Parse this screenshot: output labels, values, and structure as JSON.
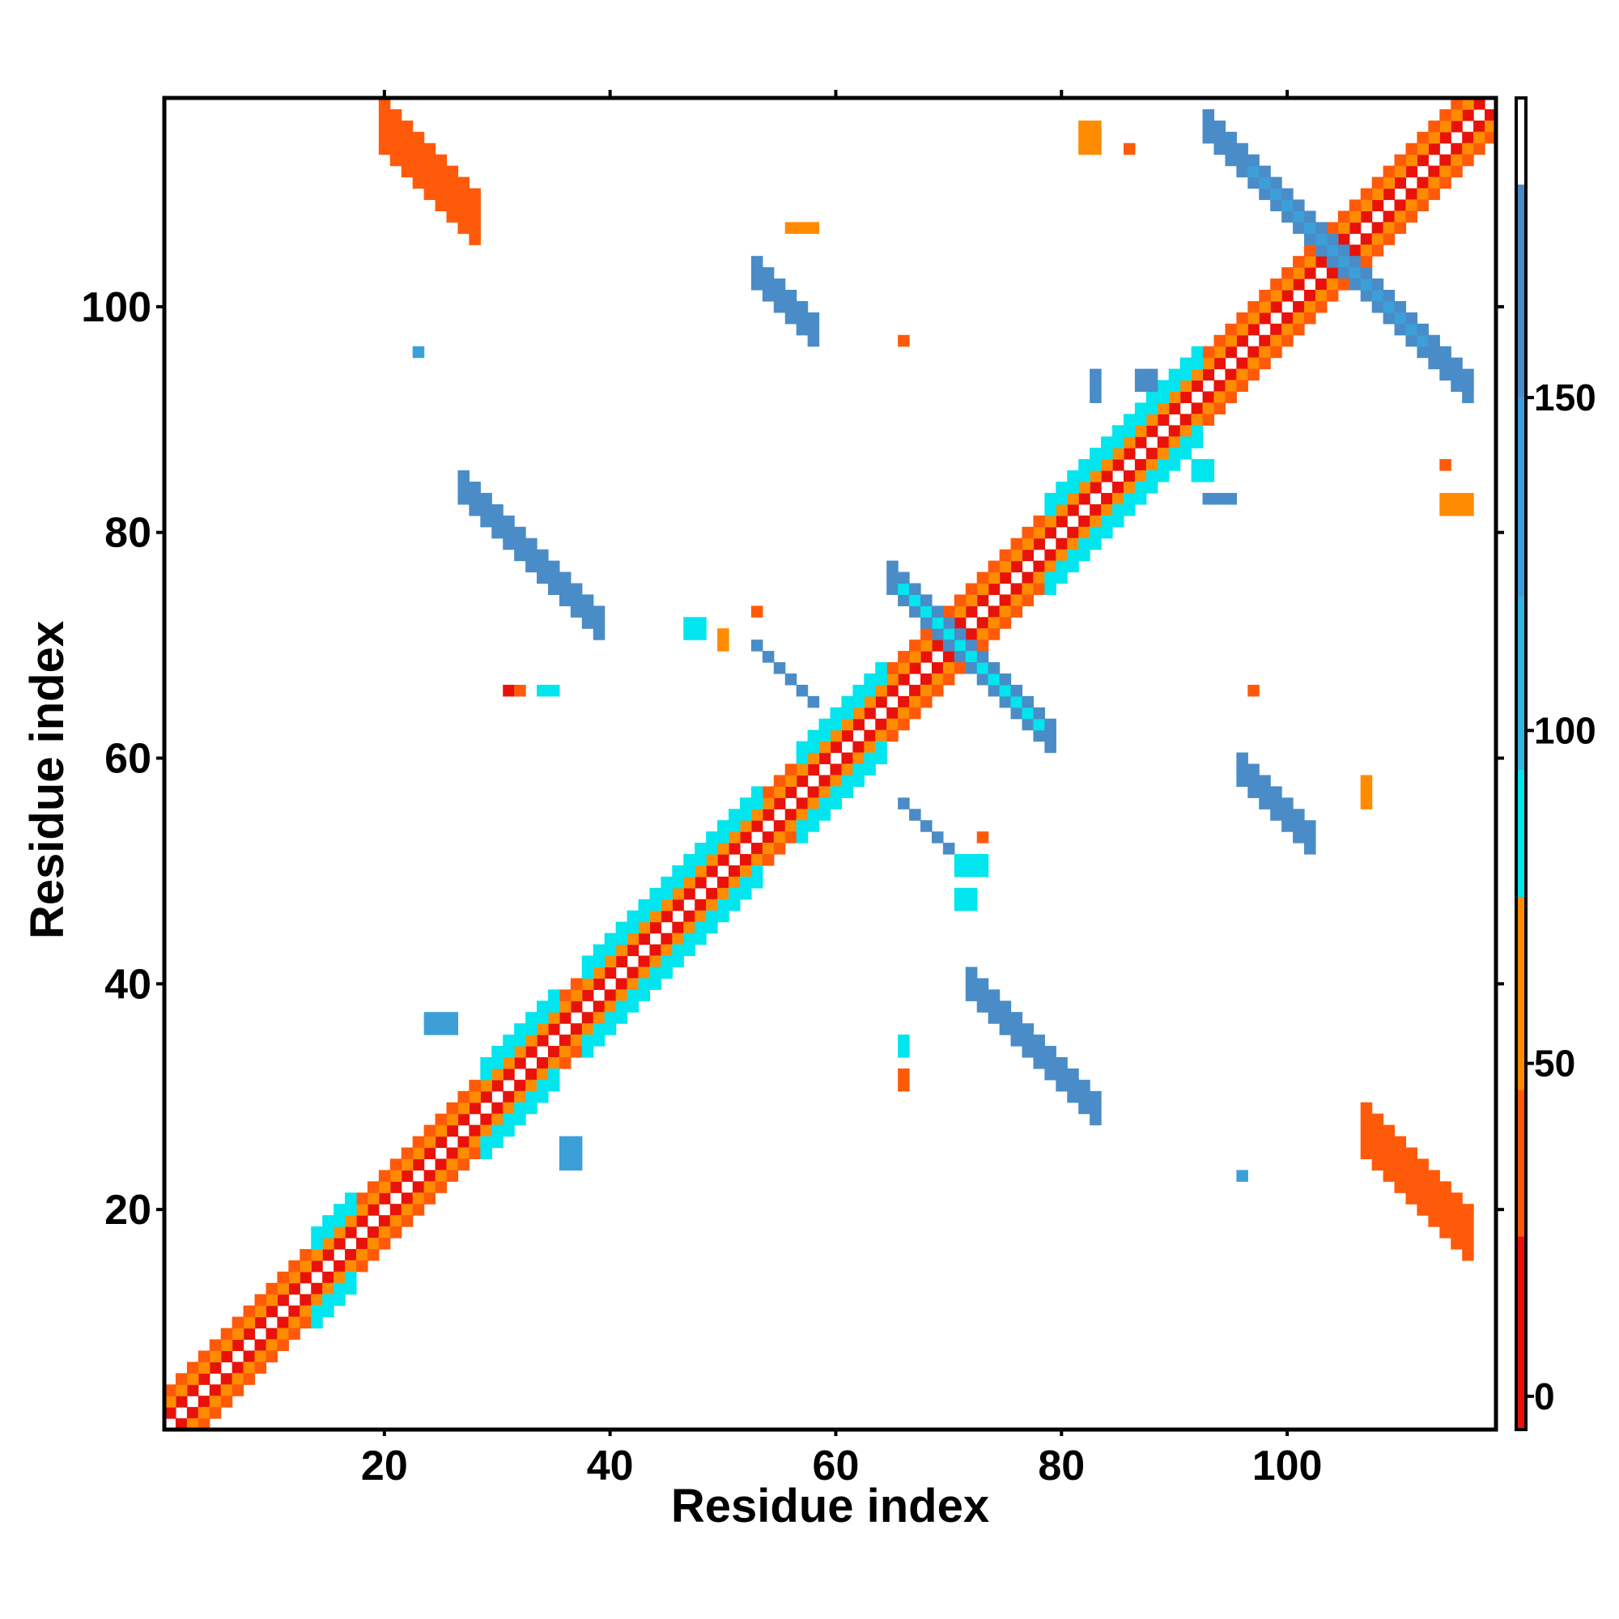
{
  "chart_data": {
    "type": "heatmap",
    "title": "",
    "xlabel": "Residue index",
    "ylabel": "Residue index",
    "xlim": [
      1,
      118
    ],
    "ylim": [
      1,
      118
    ],
    "x_ticks": [
      20,
      40,
      60,
      80,
      100
    ],
    "y_ticks": [
      20,
      40,
      60,
      80,
      100
    ],
    "colorbar": {
      "ticks": [
        0,
        50,
        100,
        150
      ],
      "range": [
        -5,
        195
      ],
      "bands": [
        {
          "from": -5,
          "to": 24,
          "color": "#e8120a"
        },
        {
          "from": 24,
          "to": 46,
          "color": "#ff5a0a"
        },
        {
          "from": 46,
          "to": 75,
          "color": "#ff8c00"
        },
        {
          "from": 75,
          "to": 94,
          "color": "#00e5ee"
        },
        {
          "from": 94,
          "to": 120,
          "color": "#33b5e0"
        },
        {
          "from": 120,
          "to": 150,
          "color": "#3d9fd8"
        },
        {
          "from": 150,
          "to": 182,
          "color": "#4a8cc7"
        },
        {
          "from": 182,
          "to": 195,
          "color": "#ffffff"
        }
      ]
    },
    "regions": [
      {
        "kind": "diag",
        "x1": 1,
        "x2": 118,
        "offset": 1,
        "thick": 0,
        "value": 5
      },
      {
        "kind": "diag",
        "x1": 1,
        "x2": 118,
        "offset": -1,
        "thick": 0,
        "value": 5
      },
      {
        "kind": "diag",
        "x1": 1,
        "x2": 118,
        "offset": 2,
        "thick": 0,
        "value": 55
      },
      {
        "kind": "diag",
        "x1": 1,
        "x2": 118,
        "offset": -2,
        "thick": 0,
        "value": 55
      },
      {
        "kind": "diag",
        "x1": 1,
        "x2": 118,
        "offset": 3,
        "thick": 0,
        "value": 35
      },
      {
        "kind": "diag",
        "x1": 1,
        "x2": 118,
        "offset": -3,
        "thick": 0,
        "value": 35
      },
      {
        "kind": "diag",
        "x1": 14,
        "x2": 17,
        "offset": 3,
        "thick": 1,
        "value": 85
      },
      {
        "kind": "diag",
        "x1": 14,
        "x2": 17,
        "offset": -3,
        "thick": 1,
        "value": 85
      },
      {
        "kind": "diag",
        "x1": 29,
        "x2": 35,
        "offset": 3,
        "thick": 1,
        "value": 85
      },
      {
        "kind": "diag",
        "x1": 29,
        "x2": 35,
        "offset": -3,
        "thick": 1,
        "value": 85
      },
      {
        "kind": "diag",
        "x1": 38,
        "x2": 53,
        "offset": 3,
        "thick": 1,
        "value": 85
      },
      {
        "kind": "diag",
        "x1": 38,
        "x2": 53,
        "offset": -3,
        "thick": 1,
        "value": 85
      },
      {
        "kind": "diag",
        "x1": 57,
        "x2": 64,
        "offset": 3,
        "thick": 1,
        "value": 85
      },
      {
        "kind": "diag",
        "x1": 57,
        "x2": 64,
        "offset": -3,
        "thick": 1,
        "value": 85
      },
      {
        "kind": "diag",
        "x1": 79,
        "x2": 92,
        "offset": 3,
        "thick": 1,
        "value": 85
      },
      {
        "kind": "diag",
        "x1": 79,
        "x2": 92,
        "offset": -3,
        "thick": 1,
        "value": 85
      },
      {
        "kind": "anti",
        "x1": 65,
        "x2": 79,
        "sum": 141,
        "thick": 1,
        "value": 165
      },
      {
        "kind": "anti",
        "x1": 66,
        "x2": 78,
        "sum": 141,
        "thick": 0,
        "value": 90
      },
      {
        "kind": "anti",
        "x1": 93,
        "x2": 116,
        "sum": 209,
        "thick": 1,
        "value": 165
      },
      {
        "kind": "anti",
        "x1": 97,
        "x2": 112,
        "sum": 209,
        "thick": 0,
        "value": 130
      },
      {
        "kind": "anti",
        "x1": 27,
        "x2": 39,
        "sum": 111,
        "thick": 1,
        "value": 160
      },
      {
        "kind": "anti",
        "x1": 72,
        "x2": 83,
        "sum": 112,
        "thick": 1,
        "value": 150
      },
      {
        "kind": "anti",
        "x1": 53,
        "x2": 58,
        "sum": 156,
        "thick": 1,
        "value": 150
      },
      {
        "kind": "anti",
        "x1": 96,
        "x2": 102,
        "sum": 155,
        "thick": 1,
        "value": 165
      },
      {
        "kind": "anti",
        "x1": 66,
        "x2": 70,
        "sum": 122,
        "thick": 0,
        "value": 165
      },
      {
        "kind": "anti",
        "x1": 53,
        "x2": 58,
        "sum": 123,
        "thick": 0,
        "value": 165
      },
      {
        "kind": "anti",
        "x1": 20,
        "x2": 28,
        "sum": 136,
        "thick": 2,
        "value": 35
      },
      {
        "kind": "anti",
        "x1": 107,
        "x2": 116,
        "sum": 134,
        "thick": 2,
        "value": 35
      },
      {
        "kind": "rect",
        "x1": 24,
        "x2": 26,
        "y1": 36,
        "y2": 37,
        "value": 130
      },
      {
        "kind": "rect",
        "x1": 36,
        "x2": 37,
        "y1": 24,
        "y2": 26,
        "value": 130
      },
      {
        "kind": "rect",
        "x1": 23,
        "x2": 23,
        "y1": 96,
        "y2": 96,
        "value": 140
      },
      {
        "kind": "rect",
        "x1": 96,
        "x2": 96,
        "y1": 23,
        "y2": 23,
        "value": 140
      },
      {
        "kind": "rect",
        "x1": 31,
        "x2": 31,
        "y1": 66,
        "y2": 66,
        "value": 5
      },
      {
        "kind": "rect",
        "x1": 32,
        "x2": 32,
        "y1": 66,
        "y2": 66,
        "value": 40
      },
      {
        "kind": "rect",
        "x1": 34,
        "x2": 35,
        "y1": 66,
        "y2": 66,
        "value": 85
      },
      {
        "kind": "rect",
        "x1": 66,
        "x2": 66,
        "y1": 31,
        "y2": 32,
        "value": 40
      },
      {
        "kind": "rect",
        "x1": 66,
        "x2": 66,
        "y1": 34,
        "y2": 35,
        "value": 85
      },
      {
        "kind": "rect",
        "x1": 47,
        "x2": 48,
        "y1": 71,
        "y2": 72,
        "value": 85
      },
      {
        "kind": "rect",
        "x1": 50,
        "x2": 50,
        "y1": 70,
        "y2": 71,
        "value": 60
      },
      {
        "kind": "rect",
        "x1": 53,
        "x2": 53,
        "y1": 73,
        "y2": 73,
        "value": 45
      },
      {
        "kind": "rect",
        "x1": 71,
        "x2": 73,
        "y1": 50,
        "y2": 51,
        "value": 85
      },
      {
        "kind": "rect",
        "x1": 71,
        "x2": 72,
        "y1": 47,
        "y2": 48,
        "value": 85
      },
      {
        "kind": "rect",
        "x1": 73,
        "x2": 73,
        "y1": 53,
        "y2": 53,
        "value": 45
      },
      {
        "kind": "rect",
        "x1": 66,
        "x2": 66,
        "y1": 97,
        "y2": 97,
        "value": 40
      },
      {
        "kind": "rect",
        "x1": 97,
        "x2": 97,
        "y1": 66,
        "y2": 66,
        "value": 40
      },
      {
        "kind": "rect",
        "x1": 82,
        "x2": 83,
        "y1": 114,
        "y2": 116,
        "value": 60
      },
      {
        "kind": "rect",
        "x1": 86,
        "x2": 86,
        "y1": 114,
        "y2": 114,
        "value": 45
      },
      {
        "kind": "rect",
        "x1": 114,
        "x2": 116,
        "y1": 82,
        "y2": 83,
        "value": 60
      },
      {
        "kind": "rect",
        "x1": 114,
        "x2": 114,
        "y1": 86,
        "y2": 86,
        "value": 45
      },
      {
        "kind": "rect",
        "x1": 56,
        "x2": 58,
        "y1": 107,
        "y2": 107,
        "value": 60
      },
      {
        "kind": "rect",
        "x1": 107,
        "x2": 107,
        "y1": 56,
        "y2": 58,
        "value": 60
      },
      {
        "kind": "rect",
        "x1": 83,
        "x2": 83,
        "y1": 92,
        "y2": 94,
        "value": 165
      },
      {
        "kind": "rect",
        "x1": 93,
        "x2": 95,
        "y1": 83,
        "y2": 83,
        "value": 165
      },
      {
        "kind": "rect",
        "x1": 92,
        "x2": 93,
        "y1": 85,
        "y2": 86,
        "value": 85
      },
      {
        "kind": "rect",
        "x1": 87,
        "x2": 88,
        "y1": 93,
        "y2": 94,
        "value": 165
      }
    ]
  }
}
